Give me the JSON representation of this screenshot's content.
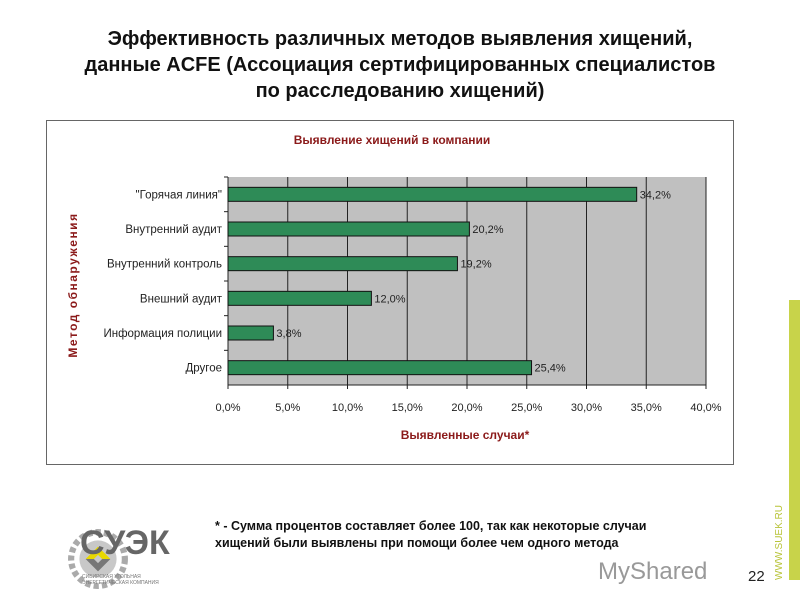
{
  "title": {
    "line1": "Эффективность различных методов выявления хищений,",
    "line2": "данные ACFE (Ассоциация сертифицированных специалистов",
    "line3": "по расследованию хищений)"
  },
  "chart_data": {
    "type": "bar",
    "orientation": "horizontal",
    "title": "Выявление хищений в компании",
    "xlabel": "Выявленные случаи*",
    "ylabel": "Метод обнаружения",
    "categories": [
      "\"Горячая линия\"",
      "Внутренний аудит",
      "Внутренний контроль",
      "Внешний аудит",
      "Информация полиции",
      "Другое"
    ],
    "values": [
      34.2,
      20.2,
      19.2,
      12.0,
      3.8,
      25.4
    ],
    "data_labels": [
      "34,2%",
      "20,2%",
      "19,2%",
      "12,0%",
      "3,8%",
      "25,4%"
    ],
    "xlim": [
      0,
      40
    ],
    "xticks": [
      "0,0%",
      "5,0%",
      "10,0%",
      "15,0%",
      "20,0%",
      "25,0%",
      "30,0%",
      "35,0%",
      "40,0%"
    ],
    "grid": true,
    "colors": {
      "bar": "#2e8b57",
      "plot_bg": "#c0c0c0",
      "title": "#8b1a1a"
    }
  },
  "footnote": {
    "line1": "* - Сумма процентов составляет более 100, так как некоторые случаи",
    "line2": "хищений были выявлены при помощи более чем одного метода"
  },
  "logo": {
    "name": "СУЭК",
    "subtitle": "СИБИРСКАЯ УГОЛЬНАЯ ЭНЕРГЕТИЧЕСКАЯ КОМПАНИЯ"
  },
  "watermark": "MyShared",
  "page_number": "22",
  "site": "WWW.SUEK.RU"
}
